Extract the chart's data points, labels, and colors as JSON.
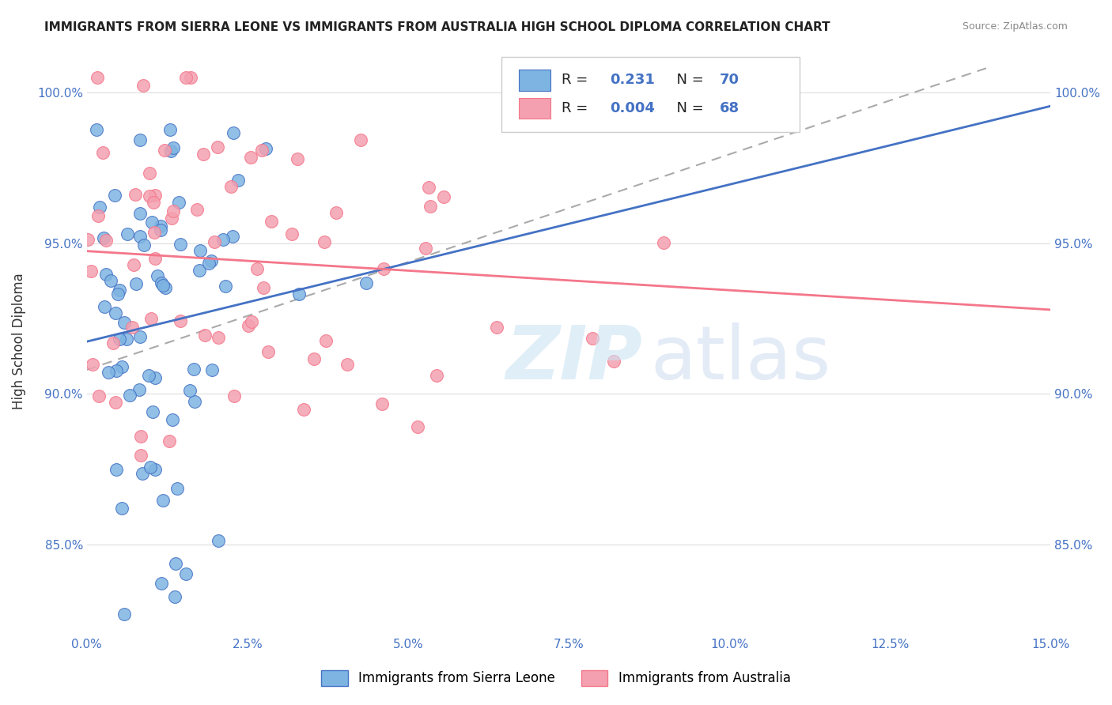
{
  "title": "IMMIGRANTS FROM SIERRA LEONE VS IMMIGRANTS FROM AUSTRALIA HIGH SCHOOL DIPLOMA CORRELATION CHART",
  "source_text": "Source: ZipAtlas.com",
  "ylabel": "High School Diploma",
  "ylabel_ticks": [
    "100.0%",
    "95.0%",
    "90.0%",
    "85.0%"
  ],
  "ylabel_tick_vals": [
    1.0,
    0.95,
    0.9,
    0.85
  ],
  "xlim": [
    0.0,
    0.15
  ],
  "ylim": [
    0.82,
    1.015
  ],
  "legend_label1": "Immigrants from Sierra Leone",
  "legend_label2": "Immigrants from Australia",
  "color_blue": "#7EB4E2",
  "color_pink": "#F4A0B0",
  "color_blue_line": "#4472C4",
  "color_pink_line": "#F4768A",
  "color_dashed": "#aaaaaa",
  "r1": "0.231",
  "n1": "70",
  "r2": "0.004",
  "n2": "68"
}
